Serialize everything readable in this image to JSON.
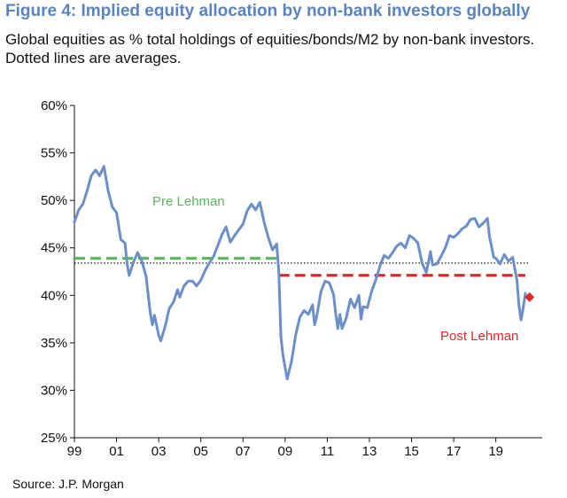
{
  "header": {
    "title": "Figure 4: Implied equity allocation by non-bank investors globally",
    "subtitle": "Global equities as % total holdings of equities/bonds/M2 by non-bank investors. Dotted lines are averages."
  },
  "footer": {
    "source": "Source: J.P. Morgan"
  },
  "chart_data": {
    "type": "line",
    "title": "Figure 4: Implied equity allocation by non-bank investors globally",
    "subtitle": "Global equities as % total holdings of equities/bonds/M2 by non-bank investors. Dotted lines are averages.",
    "xlabel": "",
    "ylabel": "",
    "xlim": [
      1999,
      2021.2
    ],
    "ylim": [
      25,
      60
    ],
    "x_ticks": [
      1999,
      2001,
      2003,
      2005,
      2007,
      2009,
      2011,
      2013,
      2015,
      2017,
      2019
    ],
    "x_tick_labels": [
      "99",
      "01",
      "03",
      "05",
      "07",
      "09",
      "11",
      "13",
      "15",
      "17",
      "19"
    ],
    "y_ticks": [
      25,
      30,
      35,
      40,
      45,
      50,
      55,
      60
    ],
    "y_tick_labels": [
      "25%",
      "30%",
      "35%",
      "40%",
      "45%",
      "50%",
      "55%",
      "60%"
    ],
    "grid": false,
    "colors": {
      "series": "#6b8fc9",
      "pre_lehman": "#5cb85c",
      "post_lehman": "#e0282a",
      "average": "#111111",
      "axis": "#111111"
    },
    "series": [
      {
        "values": [
          [
            1999.0,
            47.7
          ],
          [
            1999.2,
            49.0
          ],
          [
            1999.4,
            49.6
          ],
          [
            1999.6,
            51.0
          ],
          [
            1999.8,
            52.6
          ],
          [
            2000.0,
            53.2
          ],
          [
            2000.2,
            52.6
          ],
          [
            2000.4,
            53.6
          ],
          [
            2000.6,
            51.0
          ],
          [
            2000.8,
            49.3
          ],
          [
            2001.0,
            48.7
          ],
          [
            2001.2,
            45.9
          ],
          [
            2001.4,
            45.5
          ],
          [
            2001.5,
            43.3
          ],
          [
            2001.6,
            42.1
          ],
          [
            2001.8,
            43.5
          ],
          [
            2002.0,
            44.5
          ],
          [
            2002.2,
            43.6
          ],
          [
            2002.4,
            42.0
          ],
          [
            2002.5,
            40.1
          ],
          [
            2002.6,
            38.2
          ],
          [
            2002.7,
            36.9
          ],
          [
            2002.8,
            37.9
          ],
          [
            2003.0,
            35.8
          ],
          [
            2003.1,
            35.2
          ],
          [
            2003.3,
            36.7
          ],
          [
            2003.5,
            38.6
          ],
          [
            2003.7,
            39.3
          ],
          [
            2003.9,
            40.6
          ],
          [
            2004.0,
            39.8
          ],
          [
            2004.2,
            41.0
          ],
          [
            2004.4,
            41.5
          ],
          [
            2004.6,
            41.5
          ],
          [
            2004.8,
            41.0
          ],
          [
            2005.0,
            41.6
          ],
          [
            2005.2,
            42.6
          ],
          [
            2005.4,
            43.4
          ],
          [
            2005.6,
            44.1
          ],
          [
            2005.8,
            45.2
          ],
          [
            2006.0,
            46.4
          ],
          [
            2006.2,
            47.2
          ],
          [
            2006.4,
            45.6
          ],
          [
            2006.6,
            46.3
          ],
          [
            2006.8,
            46.9
          ],
          [
            2007.0,
            47.5
          ],
          [
            2007.2,
            48.9
          ],
          [
            2007.4,
            49.6
          ],
          [
            2007.6,
            49.0
          ],
          [
            2007.8,
            49.8
          ],
          [
            2008.0,
            47.7
          ],
          [
            2008.2,
            46.1
          ],
          [
            2008.4,
            44.8
          ],
          [
            2008.6,
            45.4
          ],
          [
            2008.7,
            42.5
          ],
          [
            2008.8,
            35.6
          ],
          [
            2008.9,
            33.6
          ],
          [
            2009.1,
            31.2
          ],
          [
            2009.3,
            33.0
          ],
          [
            2009.5,
            35.8
          ],
          [
            2009.7,
            37.7
          ],
          [
            2009.9,
            38.4
          ],
          [
            2010.1,
            38.0
          ],
          [
            2010.3,
            39.0
          ],
          [
            2010.4,
            36.9
          ],
          [
            2010.5,
            37.8
          ],
          [
            2010.7,
            40.4
          ],
          [
            2010.9,
            41.5
          ],
          [
            2011.1,
            41.3
          ],
          [
            2011.3,
            40.1
          ],
          [
            2011.4,
            38.1
          ],
          [
            2011.5,
            36.5
          ],
          [
            2011.6,
            38.0
          ],
          [
            2011.7,
            36.5
          ],
          [
            2011.9,
            37.6
          ],
          [
            2012.1,
            39.6
          ],
          [
            2012.3,
            38.7
          ],
          [
            2012.5,
            40.0
          ],
          [
            2012.6,
            37.5
          ],
          [
            2012.7,
            38.8
          ],
          [
            2012.9,
            38.7
          ],
          [
            2013.1,
            40.4
          ],
          [
            2013.3,
            41.6
          ],
          [
            2013.5,
            43.1
          ],
          [
            2013.7,
            44.2
          ],
          [
            2013.9,
            43.9
          ],
          [
            2014.1,
            44.5
          ],
          [
            2014.3,
            45.2
          ],
          [
            2014.5,
            45.5
          ],
          [
            2014.7,
            45.0
          ],
          [
            2014.9,
            46.3
          ],
          [
            2015.1,
            46.0
          ],
          [
            2015.3,
            45.5
          ],
          [
            2015.5,
            43.4
          ],
          [
            2015.7,
            42.4
          ],
          [
            2015.9,
            44.6
          ],
          [
            2016.0,
            43.2
          ],
          [
            2016.2,
            43.3
          ],
          [
            2016.4,
            44.1
          ],
          [
            2016.6,
            45.0
          ],
          [
            2016.8,
            46.3
          ],
          [
            2017.0,
            46.1
          ],
          [
            2017.2,
            46.5
          ],
          [
            2017.4,
            47.0
          ],
          [
            2017.6,
            47.3
          ],
          [
            2017.8,
            48.0
          ],
          [
            2018.0,
            48.1
          ],
          [
            2018.2,
            47.2
          ],
          [
            2018.4,
            47.6
          ],
          [
            2018.6,
            48.1
          ],
          [
            2018.7,
            46.2
          ],
          [
            2018.8,
            45.1
          ],
          [
            2018.9,
            44.0
          ],
          [
            2019.0,
            43.9
          ],
          [
            2019.2,
            43.3
          ],
          [
            2019.4,
            44.3
          ],
          [
            2019.6,
            43.6
          ],
          [
            2019.8,
            44.0
          ],
          [
            2020.0,
            41.6
          ],
          [
            2020.1,
            38.9
          ],
          [
            2020.2,
            37.4
          ],
          [
            2020.3,
            38.7
          ],
          [
            2020.4,
            40.2
          ]
        ]
      }
    ],
    "reference_lines": [
      {
        "label": "Pre Lehman",
        "value": 43.9,
        "x_range": [
          1999,
          2008.7
        ],
        "style": "dashed",
        "color": "#5cb85c"
      },
      {
        "label": "Post Lehman",
        "value": 42.1,
        "x_range": [
          2008.7,
          2020.4
        ],
        "style": "dashed",
        "color": "#e0282a"
      },
      {
        "value": 43.4,
        "x_range": [
          1999,
          2020.6
        ],
        "style": "dotted",
        "color": "#111111"
      }
    ],
    "markers": [
      {
        "x": 2020.6,
        "y": 39.8,
        "shape": "diamond",
        "color": "#e0282a"
      }
    ],
    "annotations": [
      {
        "text": "Pre Lehman",
        "color": "#5cb85c"
      },
      {
        "text": "Post Lehman",
        "color": "#e0282a"
      }
    ]
  }
}
